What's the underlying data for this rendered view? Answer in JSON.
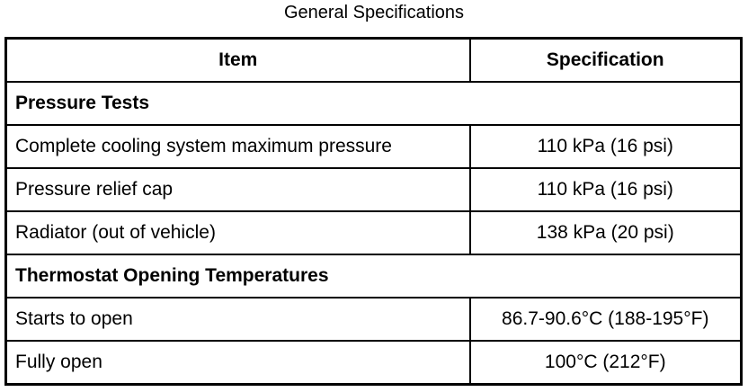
{
  "page": {
    "title": "General Specifications"
  },
  "table": {
    "columns": [
      "Item",
      "Specification"
    ],
    "rows": [
      {
        "type": "section",
        "label": "Pressure Tests"
      },
      {
        "type": "data",
        "item": "Complete cooling system maximum pressure",
        "spec": "110 kPa (16 psi)"
      },
      {
        "type": "data",
        "item": "Pressure relief cap",
        "spec": "110 kPa (16 psi)"
      },
      {
        "type": "data",
        "item": "Radiator (out of vehicle)",
        "spec": "138 kPa (20 psi)"
      },
      {
        "type": "section",
        "label": "Thermostat Opening Temperatures"
      },
      {
        "type": "data",
        "item": "Starts to open",
        "spec": "86.7-90.6°C (188-195°F)"
      },
      {
        "type": "data",
        "item": "Fully open",
        "spec": "100°C (212°F)"
      }
    ],
    "colors": {
      "border": "#000000",
      "text": "#000000",
      "background": "#ffffff"
    }
  }
}
